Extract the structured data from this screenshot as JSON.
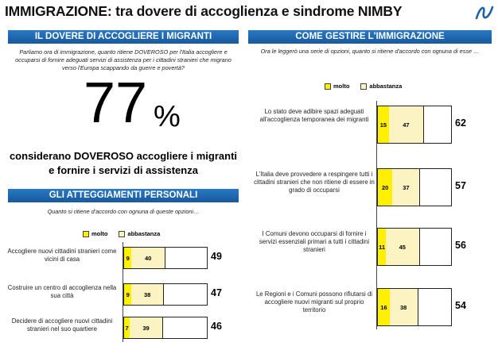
{
  "title": "IMMIGRAZIONE: tra dovere di accoglienza e sindrome NIMBY",
  "left_top": {
    "banner": "IL DOVERE DI ACCOGLIERE I MIGRANTI",
    "intro": "Parliamo ora di immigrazione, quanto ritiene DOVEROSO per l'Italia accogliere e occuparsi di fornire adeguati servizi di assistenza per i cittadini stranieri che migrano verso l'Europa scappando da guerre e povertà?",
    "big_value": "77",
    "big_unit": "%",
    "caption": "considerano DOVEROSO accogliere i migranti e fornire i servizi di assistenza"
  },
  "colors": {
    "banner": "#1f68ae",
    "molto": "#ffef00",
    "abbastanza": "#fbf4c2"
  },
  "logo_icon": "wave-logo-icon",
  "chart_data": [
    {
      "type": "bar",
      "stacked": true,
      "orientation": "horizontal",
      "title": "GLI ATTEGGIAMENTI PERSONALI",
      "subtitle": "Quanto si ritiene d'accordo con ognuna di queste opzioni…",
      "legend": [
        "molto",
        "abbastanza"
      ],
      "legend_position": "top",
      "xlim": [
        0,
        100
      ],
      "categories": [
        "Accogliere nuovi cittadini stranieri come vicini di casa",
        "Costruire un centro di accoglienza nella sua città",
        "Decidere di accogliere nuovi cittadini stranieri nel suo quartiere"
      ],
      "series": [
        {
          "name": "molto",
          "values": [
            9,
            9,
            7
          ]
        },
        {
          "name": "abbastanza",
          "values": [
            40,
            38,
            39
          ]
        }
      ],
      "totals": [
        49,
        47,
        46
      ]
    },
    {
      "type": "bar",
      "stacked": true,
      "orientation": "horizontal",
      "title": "COME GESTIRE L'IMMIGRAZIONE",
      "subtitle": "Ora le leggerò una serie di opzioni, quanto si ritiene d'accordo con ognuna di esse …",
      "legend": [
        "molto",
        "abbastanza"
      ],
      "legend_position": "top",
      "xlim": [
        0,
        100
      ],
      "categories": [
        "Lo stato deve adibire spazi adeguati all'accoglienza temporanea dei migranti",
        "L'Italia deve provvedere a respingere tutti i cittadini stranieri che non ritiene di essere in grado di occuparsi",
        "I Comuni devono occuparsi di fornire i servizi essenziali primari a tutti i cittadini stranieri",
        "Le Regioni e i Comuni possono rifiutarsi di accogliere nuovi migranti sul proprio territorio"
      ],
      "series": [
        {
          "name": "molto",
          "values": [
            15,
            20,
            11,
            16
          ]
        },
        {
          "name": "abbastanza",
          "values": [
            47,
            37,
            45,
            38
          ]
        }
      ],
      "totals": [
        62,
        57,
        56,
        54
      ]
    }
  ]
}
